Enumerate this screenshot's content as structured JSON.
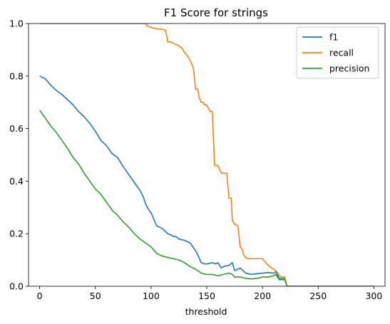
{
  "chart_data": {
    "type": "line",
    "title": "F1 Score for strings",
    "xlabel": "threshold",
    "ylabel": "",
    "xlim": [
      -10,
      310
    ],
    "ylim": [
      0,
      1
    ],
    "grid": false,
    "legend_position": "top-right",
    "xticks": [
      0,
      50,
      100,
      150,
      200,
      250,
      300
    ],
    "xtick_labels": [
      "0",
      "50",
      "100",
      "150",
      "200",
      "250",
      "300"
    ],
    "yticks": [
      0.0,
      0.2,
      0.4,
      0.6,
      0.8,
      1.0
    ],
    "ytick_labels": [
      "0.0",
      "0.2",
      "0.4",
      "0.6",
      "0.8",
      "1.0"
    ],
    "series": [
      {
        "name": "f1",
        "color": "#1f77b4",
        "x": [
          0,
          5,
          10,
          15,
          20,
          25,
          30,
          35,
          40,
          45,
          50,
          55,
          60,
          65,
          70,
          75,
          80,
          85,
          90,
          93,
          95,
          98,
          100,
          103,
          105,
          110,
          115,
          118,
          120,
          122,
          125,
          130,
          135,
          140,
          143,
          145,
          148,
          150,
          155,
          158,
          160,
          163,
          165,
          170,
          173,
          175,
          178,
          180,
          185,
          190,
          195,
          200,
          205,
          210,
          212,
          215,
          218,
          220,
          222,
          225,
          250,
          300
        ],
        "y": [
          0.8,
          0.79,
          0.765,
          0.745,
          0.73,
          0.71,
          0.69,
          0.665,
          0.645,
          0.62,
          0.59,
          0.555,
          0.535,
          0.505,
          0.49,
          0.455,
          0.425,
          0.395,
          0.365,
          0.34,
          0.315,
          0.29,
          0.28,
          0.25,
          0.23,
          0.22,
          0.2,
          0.195,
          0.19,
          0.19,
          0.18,
          0.175,
          0.165,
          0.135,
          0.11,
          0.09,
          0.085,
          0.085,
          0.09,
          0.085,
          0.09,
          0.07,
          0.075,
          0.08,
          0.09,
          0.06,
          0.065,
          0.07,
          0.05,
          0.045,
          0.048,
          0.05,
          0.052,
          0.05,
          0.055,
          0.03,
          0.03,
          0.03,
          0.0,
          0.0,
          0.0,
          0.0
        ]
      },
      {
        "name": "recall",
        "color": "#ff7f0e",
        "x": [
          0,
          50,
          90,
          95,
          97,
          100,
          105,
          110,
          113,
          115,
          117,
          120,
          125,
          128,
          130,
          133,
          135,
          138,
          140,
          142,
          143,
          145,
          147,
          148,
          150,
          153,
          155,
          157,
          160,
          163,
          165,
          168,
          170,
          172,
          173,
          175,
          176,
          178,
          180,
          182,
          183,
          185,
          187,
          190,
          195,
          200,
          205,
          210,
          213,
          215,
          218,
          220,
          222,
          225,
          250,
          300
        ],
        "y": [
          1.0,
          1.0,
          1.0,
          1.0,
          0.99,
          0.985,
          0.98,
          0.978,
          0.975,
          0.93,
          0.93,
          0.925,
          0.915,
          0.905,
          0.89,
          0.875,
          0.86,
          0.83,
          0.75,
          0.75,
          0.72,
          0.7,
          0.7,
          0.69,
          0.69,
          0.665,
          0.665,
          0.46,
          0.46,
          0.43,
          0.43,
          0.43,
          0.335,
          0.335,
          0.25,
          0.235,
          0.235,
          0.23,
          0.15,
          0.14,
          0.12,
          0.11,
          0.105,
          0.105,
          0.105,
          0.105,
          0.08,
          0.065,
          0.055,
          0.04,
          0.035,
          0.035,
          0.0,
          0.0,
          0.0,
          0.0
        ]
      },
      {
        "name": "precision",
        "color": "#2ca02c",
        "x": [
          0,
          5,
          10,
          15,
          20,
          25,
          30,
          35,
          40,
          45,
          50,
          55,
          60,
          65,
          70,
          75,
          80,
          85,
          90,
          95,
          100,
          103,
          105,
          110,
          115,
          120,
          125,
          130,
          135,
          140,
          145,
          150,
          155,
          160,
          165,
          170,
          173,
          175,
          180,
          185,
          190,
          195,
          200,
          205,
          210,
          212,
          215,
          218,
          220,
          222,
          225,
          250,
          300
        ],
        "y": [
          0.67,
          0.64,
          0.61,
          0.585,
          0.555,
          0.525,
          0.49,
          0.465,
          0.43,
          0.4,
          0.37,
          0.35,
          0.32,
          0.29,
          0.27,
          0.245,
          0.225,
          0.2,
          0.18,
          0.165,
          0.15,
          0.135,
          0.125,
          0.115,
          0.11,
          0.105,
          0.1,
          0.09,
          0.075,
          0.065,
          0.05,
          0.045,
          0.045,
          0.04,
          0.045,
          0.05,
          0.045,
          0.035,
          0.035,
          0.03,
          0.028,
          0.03,
          0.035,
          0.035,
          0.04,
          0.045,
          0.025,
          0.025,
          0.025,
          0.0,
          0.0,
          0.0,
          0.0
        ]
      }
    ]
  }
}
